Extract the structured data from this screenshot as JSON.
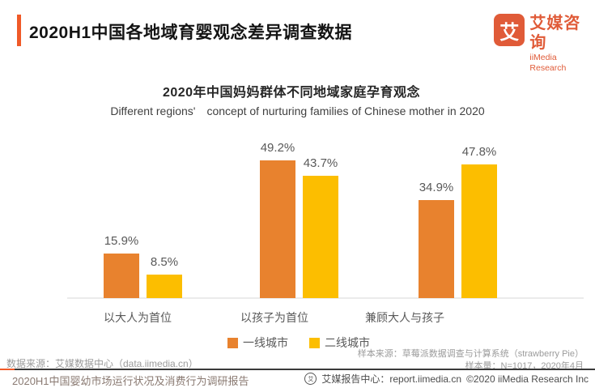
{
  "header": {
    "title": "2020H1中国各地域育婴观念差异调查数据",
    "logo": {
      "glyph": "艾",
      "brand_cn": "艾媒咨询",
      "brand_en": "iiMedia Research"
    }
  },
  "chart": {
    "title": "2020年中国妈妈群体不同地域家庭孕育观念",
    "subtitle": "Different regions'　concept of nurturing families of Chinese mother in 2020"
  },
  "chart_data": {
    "type": "bar",
    "title": "2020年中国妈妈群体不同地域家庭孕育观念",
    "categories": [
      "以大人为首位",
      "以孩子为首位",
      "兼顾大人与孩子"
    ],
    "series": [
      {
        "name": "一线城市",
        "color": "#E8822E",
        "values": [
          15.9,
          49.2,
          34.9
        ]
      },
      {
        "name": "二线城市",
        "color": "#FCBE00",
        "values": [
          8.5,
          43.7,
          47.8
        ]
      }
    ],
    "value_suffix": "%",
    "ylim": [
      0,
      55
    ],
    "grid": false,
    "legend_position": "bottom",
    "value_labels_shown": true
  },
  "notes": {
    "data_source": "数据来源：艾媒数据中心（data.iimedia.cn）",
    "sample_source": "样本来源：草莓派数据调查与计算系统（strawberry Pie）",
    "sample_size": "样本量：N=1017，2020年4月"
  },
  "footer": {
    "report_title": "2020H1中国婴幼市场运行状况及消费行为调研报告",
    "report_center": "艾媒报告中心：report.iimedia.cn",
    "copyright": "©2020  iiMedia Research Inc"
  },
  "colors": {
    "accent_orange": "#F05A28",
    "brand_orange": "#E05B38",
    "bar_orange": "#E8822E",
    "bar_yellow": "#FCBE00"
  }
}
